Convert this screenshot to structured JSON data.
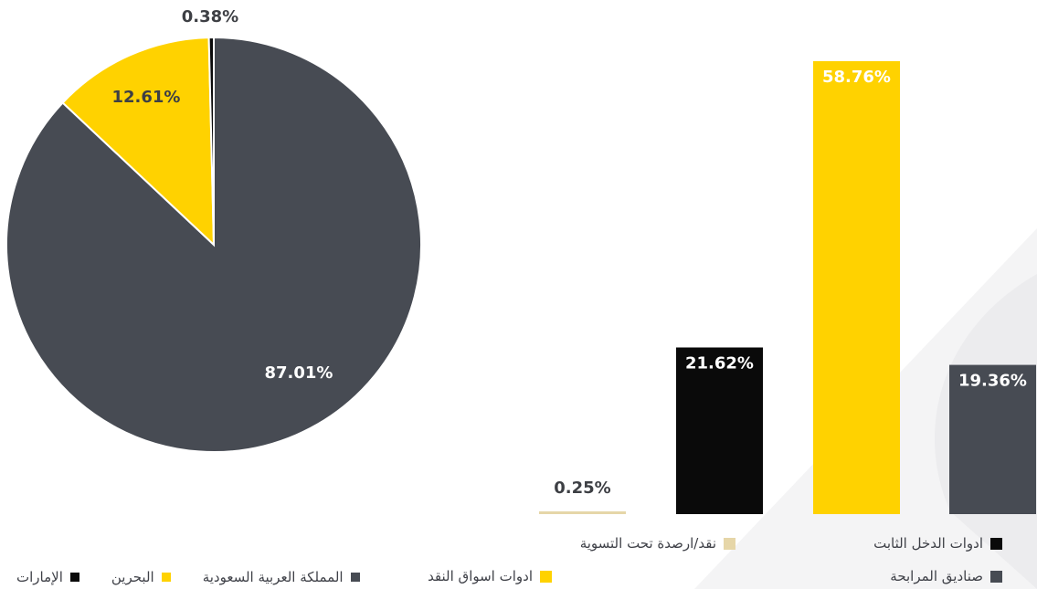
{
  "chart_data": [
    {
      "type": "pie",
      "title": "",
      "slices": [
        {
          "label": "المملكة العربية السعودية",
          "value": 87.01,
          "display": "87.01%",
          "color": "#474b53",
          "label_color": "#ffffff"
        },
        {
          "label": "البحرين",
          "value": 12.61,
          "display": "12.61%",
          "color": "#ffd200",
          "label_color": "#3d3f44"
        },
        {
          "label": "الإمارات",
          "value": 0.38,
          "display": "0.38%",
          "color": "#0a0a0a",
          "label_color": "#3d3f44"
        }
      ],
      "legend_position": "bottom"
    },
    {
      "type": "bar",
      "title": "",
      "categories": [
        "نقد/ارصدة تحت التسوية",
        "ادوات الدخل الثابت",
        "ادوات اسواق النقد",
        "صناديق المرابحة"
      ],
      "values": [
        0.25,
        21.62,
        58.76,
        19.36
      ],
      "labels": [
        "0.25%",
        "21.62%",
        "58.76%",
        "19.36%"
      ],
      "colors": [
        "#e6d6a8",
        "#0a0a0a",
        "#ffd200",
        "#474b53"
      ],
      "label_colors": [
        "#3d3f44",
        "#ffffff",
        "#ffffff",
        "#ffffff"
      ],
      "ylim": [
        0,
        58.76
      ],
      "grid": false,
      "legend_position": "bottom"
    }
  ],
  "legends": {
    "pie": [
      {
        "label": "المملكة العربية السعودية",
        "color": "#474b53"
      },
      {
        "label": "البحرين",
        "color": "#ffd200"
      },
      {
        "label": "الإمارات",
        "color": "#0a0a0a"
      }
    ],
    "bar": [
      {
        "label": "ادوات الدخل الثابت",
        "color": "#0a0a0a"
      },
      {
        "label": "نقد/ارصدة تحت التسوية",
        "color": "#e6d6a8"
      },
      {
        "label": "صناديق المرابحة",
        "color": "#474b53"
      },
      {
        "label": "ادوات اسواق النقد",
        "color": "#ffd200"
      }
    ]
  }
}
